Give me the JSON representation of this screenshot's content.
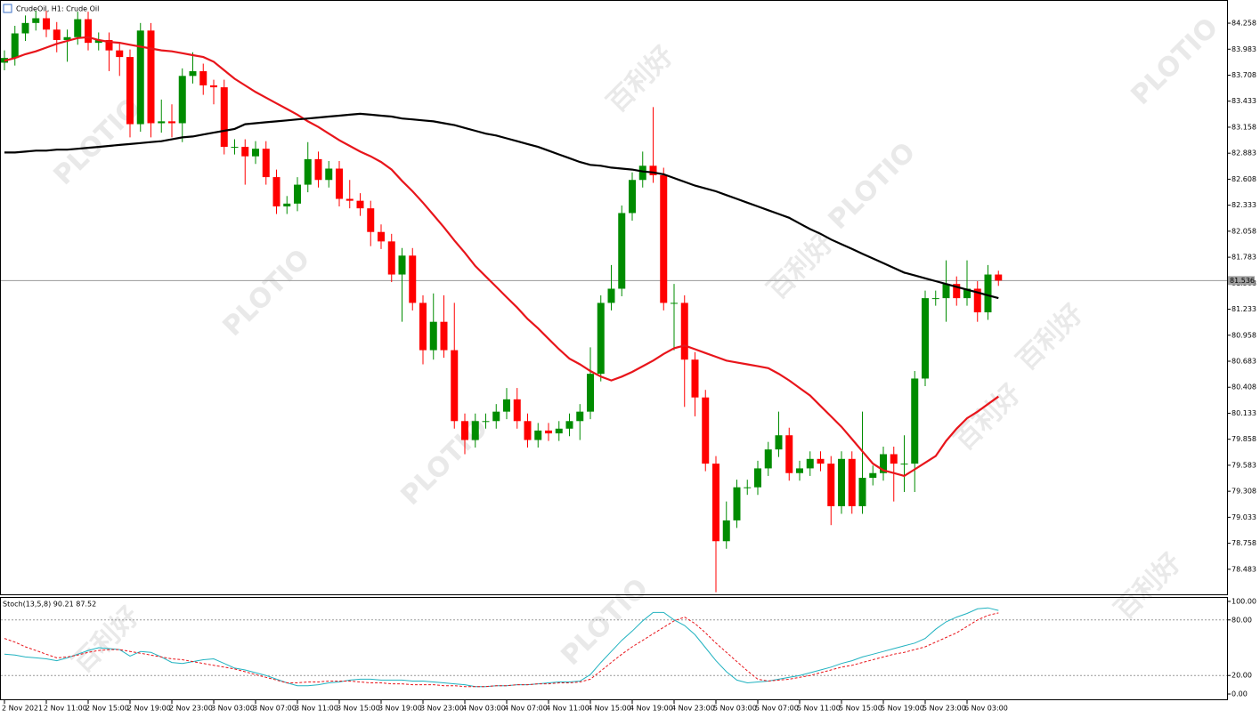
{
  "chart_data": [
    {
      "type": "candlestick",
      "title": "CrudeOil, H1:  Crude Oil",
      "open": [
        83.84,
        83.89,
        84.15,
        84.26,
        84.31,
        84.19,
        84.08,
        84.11,
        84.3,
        84.05,
        84.08,
        83.97,
        83.9,
        83.19,
        84.18,
        83.2,
        83.22,
        83.2,
        83.7,
        83.75,
        83.6,
        83.58,
        82.95,
        82.95,
        82.85,
        82.93,
        82.63,
        82.32,
        82.35,
        82.55,
        82.82,
        82.6,
        82.72,
        82.4,
        82.38,
        82.3,
        82.05,
        81.95,
        81.6,
        81.8,
        81.3,
        80.8,
        81.1,
        80.8,
        80.05,
        79.85,
        80.05,
        80.05,
        80.15,
        80.28,
        80.05,
        79.85,
        79.95,
        79.92,
        79.97,
        80.05,
        80.15,
        80.55,
        81.3,
        81.45,
        82.25,
        82.6,
        82.75,
        82.65,
        81.3,
        81.3,
        80.7,
        80.3,
        79.6,
        78.78,
        79.0,
        79.35,
        79.35,
        79.55,
        79.75,
        79.9,
        79.5,
        79.55,
        79.65,
        79.6,
        79.15,
        79.65,
        79.15,
        79.45,
        79.5,
        79.7,
        79.6,
        79.6,
        80.5,
        81.35,
        81.35,
        81.5,
        81.35,
        81.45,
        81.2,
        81.6
      ],
      "high": [
        83.97,
        84.23,
        84.34,
        84.39,
        84.39,
        84.27,
        84.19,
        84.38,
        84.38,
        84.16,
        84.16,
        84.05,
        83.98,
        84.26,
        84.26,
        83.45,
        83.4,
        83.78,
        83.95,
        83.83,
        83.66,
        83.66,
        83.03,
        83.03,
        83.01,
        83.01,
        82.71,
        82.43,
        82.63,
        83.0,
        82.9,
        82.8,
        82.8,
        82.6,
        82.46,
        82.38,
        82.13,
        82.03,
        81.88,
        81.88,
        81.38,
        81.4,
        81.38,
        81.3,
        80.13,
        80.13,
        80.13,
        80.23,
        80.4,
        80.4,
        80.13,
        80.03,
        80.03,
        80.05,
        80.13,
        80.23,
        80.83,
        81.38,
        81.7,
        82.33,
        82.68,
        82.9,
        83.37,
        82.73,
        81.5,
        81.38,
        80.78,
        80.38,
        79.68,
        79.2,
        79.43,
        79.43,
        79.63,
        79.83,
        80.15,
        79.98,
        79.63,
        79.73,
        79.73,
        79.68,
        79.73,
        79.73,
        80.15,
        79.58,
        79.78,
        79.78,
        79.9,
        80.58,
        81.43,
        81.43,
        81.75,
        81.58,
        81.75,
        81.53,
        81.7,
        81.64
      ],
      "low": [
        83.76,
        83.81,
        84.07,
        84.18,
        84.11,
        83.95,
        83.85,
        84.03,
        83.97,
        83.97,
        83.75,
        83.7,
        83.05,
        83.11,
        83.05,
        83.1,
        83.05,
        83.0,
        83.62,
        83.5,
        83.4,
        82.87,
        82.87,
        82.55,
        82.77,
        82.55,
        82.24,
        82.24,
        82.27,
        82.47,
        82.52,
        82.52,
        82.32,
        82.3,
        82.22,
        81.9,
        81.87,
        81.52,
        81.1,
        81.22,
        80.65,
        80.7,
        80.72,
        79.97,
        79.7,
        79.77,
        79.97,
        79.97,
        80.07,
        79.97,
        79.77,
        79.77,
        79.84,
        79.84,
        79.89,
        79.85,
        80.07,
        80.47,
        81.22,
        81.37,
        82.17,
        82.52,
        82.57,
        81.22,
        80.8,
        80.2,
        80.1,
        79.52,
        78.24,
        78.7,
        78.92,
        79.27,
        79.27,
        79.47,
        79.67,
        79.42,
        79.42,
        79.47,
        79.52,
        78.95,
        79.07,
        79.07,
        79.07,
        79.37,
        79.42,
        79.2,
        79.3,
        79.3,
        80.42,
        81.27,
        81.1,
        81.27,
        81.27,
        81.1,
        81.12,
        81.48
      ],
      "close": [
        83.89,
        84.15,
        84.26,
        84.31,
        84.19,
        84.08,
        84.11,
        84.3,
        84.05,
        84.08,
        83.97,
        83.9,
        83.19,
        84.18,
        83.2,
        83.22,
        83.2,
        83.7,
        83.75,
        83.6,
        83.58,
        82.95,
        82.95,
        82.85,
        82.93,
        82.63,
        82.32,
        82.35,
        82.55,
        82.82,
        82.6,
        82.72,
        82.4,
        82.38,
        82.3,
        82.05,
        81.95,
        81.6,
        81.8,
        81.3,
        80.8,
        81.1,
        80.8,
        80.05,
        79.85,
        80.05,
        80.05,
        80.15,
        80.28,
        80.05,
        79.85,
        79.95,
        79.92,
        79.97,
        80.05,
        80.15,
        80.55,
        81.3,
        81.45,
        82.25,
        82.6,
        82.75,
        82.65,
        81.3,
        81.3,
        80.7,
        80.3,
        79.6,
        78.78,
        79.0,
        79.35,
        79.35,
        79.55,
        79.75,
        79.9,
        79.5,
        79.55,
        79.65,
        79.6,
        79.15,
        79.65,
        79.15,
        79.45,
        79.5,
        79.7,
        79.6,
        79.6,
        80.5,
        81.35,
        81.35,
        81.5,
        81.35,
        81.45,
        81.2,
        81.6,
        81.536
      ],
      "up_color": "#008c00",
      "down_color": "#ff0000",
      "series": [
        {
          "color": "#e8151b",
          "values": [
            83.86,
            83.89,
            83.93,
            83.96,
            84.0,
            84.04,
            84.07,
            84.1,
            84.11,
            84.08,
            84.06,
            84.05,
            84.03,
            84.01,
            83.99,
            83.97,
            83.96,
            83.94,
            83.92,
            83.9,
            83.85,
            83.76,
            83.67,
            83.6,
            83.53,
            83.47,
            83.41,
            83.35,
            83.29,
            83.22,
            83.16,
            83.09,
            83.02,
            82.96,
            82.9,
            82.85,
            82.79,
            82.71,
            82.59,
            82.48,
            82.36,
            82.23,
            82.1,
            81.96,
            81.83,
            81.69,
            81.58,
            81.47,
            81.36,
            81.25,
            81.13,
            81.03,
            80.92,
            80.81,
            80.71,
            80.65,
            80.58,
            80.52,
            80.48,
            80.52,
            80.57,
            80.63,
            80.69,
            80.76,
            80.82,
            80.85,
            80.81,
            80.77,
            80.73,
            80.69,
            80.67,
            80.65,
            80.63,
            80.61,
            80.55,
            80.48,
            80.4,
            80.32,
            80.21,
            80.1,
            79.99,
            79.86,
            79.73,
            79.6,
            79.53,
            79.5,
            79.47,
            79.54,
            79.61,
            79.68,
            79.84,
            79.97,
            80.08,
            80.15,
            80.23,
            80.31
          ]
        },
        {
          "color": "#000000",
          "values": [
            82.89,
            82.89,
            82.9,
            82.91,
            82.91,
            82.92,
            82.92,
            82.93,
            82.94,
            82.95,
            82.96,
            82.97,
            82.98,
            82.99,
            83.0,
            83.01,
            83.03,
            83.05,
            83.06,
            83.08,
            83.1,
            83.12,
            83.14,
            83.19,
            83.2,
            83.21,
            83.22,
            83.23,
            83.24,
            83.25,
            83.26,
            83.27,
            83.28,
            83.29,
            83.3,
            83.29,
            83.28,
            83.27,
            83.25,
            83.24,
            83.23,
            83.22,
            83.2,
            83.18,
            83.15,
            83.12,
            83.09,
            83.07,
            83.04,
            83.01,
            82.98,
            82.95,
            82.91,
            82.87,
            82.83,
            82.79,
            82.76,
            82.75,
            82.73,
            82.72,
            82.71,
            82.69,
            82.68,
            82.66,
            82.62,
            82.58,
            82.54,
            82.51,
            82.48,
            82.44,
            82.4,
            82.36,
            82.32,
            82.28,
            82.24,
            82.2,
            82.14,
            82.08,
            82.03,
            81.97,
            81.92,
            81.87,
            81.82,
            81.77,
            81.72,
            81.67,
            81.62,
            81.59,
            81.56,
            81.53,
            81.5,
            81.47,
            81.44,
            81.41,
            81.38,
            81.35
          ]
        }
      ],
      "current_price": 81.536,
      "ylim": [
        78.218,
        84.503
      ],
      "yticks": [
        84.258,
        83.983,
        83.708,
        83.433,
        83.158,
        82.883,
        82.608,
        82.333,
        82.058,
        81.783,
        81.508,
        81.233,
        80.958,
        80.683,
        80.408,
        80.133,
        79.858,
        79.583,
        79.308,
        79.033,
        78.758,
        78.483
      ],
      "watermark": [
        "PLOTIO",
        "百利好"
      ]
    },
    {
      "type": "line",
      "title": "Stoch(13,5,8) 90.21 87.52",
      "series": [
        {
          "color": "#20b2c0",
          "values": [
            43,
            42,
            40,
            39,
            38,
            36,
            39,
            43,
            47,
            50,
            49,
            48,
            41,
            46,
            45,
            40,
            34,
            33,
            35,
            37,
            38,
            33,
            28,
            26,
            23,
            20,
            16,
            12,
            9,
            9,
            10,
            12,
            13,
            15,
            16,
            16,
            15,
            15,
            15,
            14,
            14,
            13,
            12,
            11,
            10,
            8,
            8,
            9,
            9,
            10,
            10,
            11,
            12,
            13,
            13,
            14,
            21,
            34,
            46,
            58,
            68,
            79,
            88,
            88,
            80,
            74,
            64,
            50,
            36,
            24,
            15,
            12,
            13,
            14,
            16,
            18,
            20,
            23,
            26,
            29,
            33,
            36,
            40,
            43,
            46,
            49,
            52,
            55,
            60,
            70,
            78,
            83,
            87,
            92,
            93,
            90.21
          ]
        },
        {
          "color": "#e8151b",
          "dashed": true,
          "values": [
            60,
            56,
            51,
            47,
            43,
            39,
            40,
            42,
            45,
            47,
            48,
            48,
            46,
            44,
            42,
            40,
            38,
            37,
            35,
            33,
            31,
            29,
            27,
            24,
            21,
            18,
            15,
            12,
            12,
            13,
            13,
            14,
            14,
            14,
            13,
            12,
            12,
            11,
            11,
            10,
            10,
            10,
            9,
            9,
            8,
            8,
            8,
            9,
            9,
            10,
            10,
            11,
            11,
            12,
            12,
            13,
            16,
            25,
            34,
            43,
            51,
            58,
            65,
            72,
            79,
            83,
            76,
            66,
            55,
            45,
            35,
            25,
            16,
            14,
            15,
            16,
            18,
            20,
            23,
            26,
            29,
            31,
            34,
            37,
            40,
            43,
            45,
            48,
            51,
            56,
            61,
            66,
            73,
            80,
            85,
            87.52
          ]
        }
      ],
      "ylim": [
        -6.7,
        103.8
      ],
      "yticks": [
        {
          "value": 100,
          "label": "100.00"
        },
        {
          "value": 80,
          "label": "80.00"
        },
        {
          "value": 20,
          "label": "20.00"
        },
        {
          "value": 0,
          "label": "0.00"
        }
      ],
      "xticks": [
        {
          "value": 0,
          "label": "2 Nov 2021"
        },
        {
          "value": 4,
          "label": "2 Nov 11:00"
        },
        {
          "value": 8,
          "label": "2 Nov 15:00"
        },
        {
          "value": 12,
          "label": "2 Nov 19:00"
        },
        {
          "value": 16,
          "label": "2 Nov 23:00"
        },
        {
          "value": 20,
          "label": "3 Nov 03:00"
        },
        {
          "value": 24,
          "label": "3 Nov 07:00"
        },
        {
          "value": 28,
          "label": "3 Nov 11:00"
        },
        {
          "value": 32,
          "label": "3 Nov 15:00"
        },
        {
          "value": 36,
          "label": "3 Nov 19:00"
        },
        {
          "value": 40,
          "label": "3 Nov 23:00"
        },
        {
          "value": 44,
          "label": "4 Nov 03:00"
        },
        {
          "value": 48,
          "label": "4 Nov 07:00"
        },
        {
          "value": 52,
          "label": "4 Nov 11:00"
        },
        {
          "value": 56,
          "label": "4 Nov 15:00"
        },
        {
          "value": 60,
          "label": "4 Nov 19:00"
        },
        {
          "value": 64,
          "label": "4 Nov 23:00"
        },
        {
          "value": 68,
          "label": "5 Nov 03:00"
        },
        {
          "value": 72,
          "label": "5 Nov 07:00"
        },
        {
          "value": 76,
          "label": "5 Nov 11:00"
        },
        {
          "value": 80,
          "label": "5 Nov 15:00"
        },
        {
          "value": 84,
          "label": "5 Nov 19:00"
        },
        {
          "value": 88,
          "label": "5 Nov 23:00"
        },
        {
          "value": 92,
          "label": "6 Nov 03:00"
        }
      ]
    }
  ]
}
